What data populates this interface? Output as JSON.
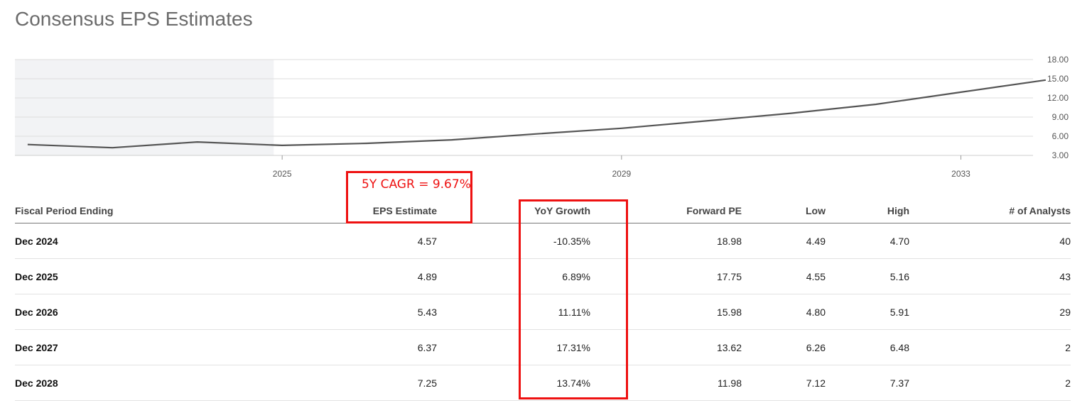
{
  "page": {
    "title": "Consensus EPS Estimates"
  },
  "annotation": {
    "cagr_label": "5Y CAGR = 9.67%",
    "color": "#ee1111"
  },
  "chart_data": {
    "type": "line",
    "title": "",
    "xlabel": "",
    "ylabel": "",
    "x": [
      2022,
      2023,
      2024,
      2025,
      2026,
      2027,
      2028,
      2029,
      2030,
      2031,
      2032,
      2033,
      2034
    ],
    "series": [
      {
        "values": [
          4.7,
          4.2,
          5.1,
          4.57,
          4.89,
          5.43,
          6.37,
          7.25,
          8.4,
          9.6,
          11.0,
          12.9,
          14.8
        ]
      }
    ],
    "xticks": [
      "2025",
      "2029",
      "2033"
    ],
    "yticks": [
      "18.00",
      "15.00",
      "12.00",
      "9.00",
      "6.00",
      "3.00"
    ],
    "ylim": [
      3,
      18
    ],
    "y_axis_position": "right",
    "grid": true,
    "historical_shading": "through 2024",
    "line_color": "#555555",
    "shade_color": "#f2f3f5"
  },
  "table": {
    "headers": {
      "period": "Fiscal Period Ending",
      "eps": "EPS Estimate",
      "yoy": "YoY Growth",
      "fpe": "Forward PE",
      "low": "Low",
      "high": "High",
      "analysts": "# of Analysts"
    },
    "rows": [
      {
        "period": "Dec 2024",
        "eps": "4.57",
        "yoy": "-10.35%",
        "fpe": "18.98",
        "low": "4.49",
        "high": "4.70",
        "analysts": "40"
      },
      {
        "period": "Dec 2025",
        "eps": "4.89",
        "yoy": "6.89%",
        "fpe": "17.75",
        "low": "4.55",
        "high": "5.16",
        "analysts": "43"
      },
      {
        "period": "Dec 2026",
        "eps": "5.43",
        "yoy": "11.11%",
        "fpe": "15.98",
        "low": "4.80",
        "high": "5.91",
        "analysts": "29"
      },
      {
        "period": "Dec 2027",
        "eps": "6.37",
        "yoy": "17.31%",
        "fpe": "13.62",
        "low": "6.26",
        "high": "6.48",
        "analysts": "2"
      },
      {
        "period": "Dec 2028",
        "eps": "7.25",
        "yoy": "13.74%",
        "fpe": "11.98",
        "low": "7.12",
        "high": "7.37",
        "analysts": "2"
      }
    ]
  }
}
